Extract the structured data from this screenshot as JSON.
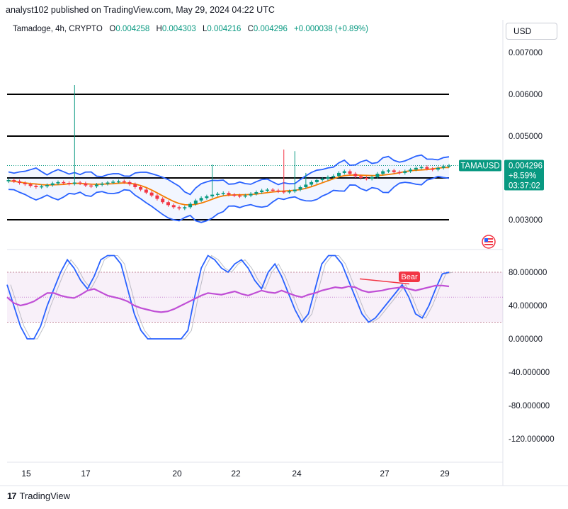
{
  "header": {
    "publisher": "analyst102 published on TradingView.com, May 29, 2024 04:22 UTC"
  },
  "symbol_bar": {
    "title": "Tamadoge, 4h, CRYPTO",
    "open_label": "O",
    "open_value": "0.004258",
    "high_label": "H",
    "high_value": "0.004303",
    "low_label": "L",
    "low_value": "0.004216",
    "close_label": "C",
    "close_value": "0.004296",
    "change": "+0.000038 (+0.89%)"
  },
  "currency_button": "USD",
  "price_tag": {
    "ticker": "TAMAUSD",
    "price": "0.004296",
    "pct": "+8.59%",
    "countdown": "03:37:02"
  },
  "indicator_tag": "Bear",
  "footer": {
    "brand": "TradingView"
  },
  "colors": {
    "up": "#089981",
    "down": "#f23645",
    "bb": "#2962ff",
    "ma": "#f57c00",
    "stoch_k": "#2962ff",
    "rsi": "#c04fd6",
    "bear": "#f23645",
    "ticker_bg": "#089981"
  },
  "chart_data": [
    {
      "type": "candlestick",
      "title": "Tamadoge, 4h, CRYPTO",
      "y_ticks": [
        "0.007000",
        "0.006000",
        "0.005000",
        "0.003000"
      ],
      "x_ticks": [
        "15",
        "17",
        "20",
        "22",
        "24",
        "27",
        "29"
      ],
      "horizontal_levels": [
        0.006,
        0.005,
        0.004,
        0.003
      ],
      "ylim": [
        0.0027,
        0.0074
      ],
      "overlays": [
        "Bollinger Bands",
        "Moving Average"
      ],
      "price_path": [
        0.00395,
        0.00392,
        0.00388,
        0.00385,
        0.00381,
        0.00378,
        0.0038,
        0.00383,
        0.00387,
        0.0039,
        0.00388,
        0.00386,
        0.00389,
        0.00387,
        0.00382,
        0.0038,
        0.00384,
        0.00386,
        0.00389,
        0.00391,
        0.00392,
        0.0039,
        0.00385,
        0.00378,
        0.00372,
        0.00365,
        0.00358,
        0.0035,
        0.00342,
        0.00335,
        0.0033,
        0.00327,
        0.0033,
        0.00338,
        0.00346,
        0.00352,
        0.00356,
        0.0036,
        0.00362,
        0.00364,
        0.0036,
        0.00358,
        0.00356,
        0.00358,
        0.00362,
        0.00366,
        0.0037,
        0.00372,
        0.0037,
        0.00368,
        0.00366,
        0.00368,
        0.00372,
        0.00378,
        0.00384,
        0.0039,
        0.00395,
        0.00398,
        0.00402,
        0.00405,
        0.00412,
        0.00416,
        0.0041,
        0.00404,
        0.004,
        0.00398,
        0.00402,
        0.0041,
        0.00416,
        0.00418,
        0.00414,
        0.00412,
        0.00416,
        0.0042,
        0.00424,
        0.00426,
        0.00422,
        0.0042,
        0.00424,
        0.00428,
        0.004296
      ],
      "wicks": [
        {
          "index": 12,
          "high": 0.00622
        },
        {
          "index": 37,
          "high": 0.00432
        },
        {
          "index": 50,
          "high": 0.00468
        },
        {
          "index": 52,
          "high": 0.00464
        },
        {
          "index": 54,
          "high": 0.00412
        }
      ],
      "last_price": 0.004296
    },
    {
      "type": "line",
      "title": "Stochastic RSI",
      "y_ticks": [
        "80.000000",
        "40.000000",
        "0.000000",
        "-40.000000",
        "-80.000000",
        "-120.000000"
      ],
      "ylim": [
        -148,
        110
      ],
      "band": [
        20,
        80
      ],
      "series": [
        {
          "values": [
            65,
            40,
            15,
            0,
            0,
            15,
            40,
            60,
            80,
            95,
            85,
            70,
            60,
            75,
            95,
            100,
            100,
            90,
            60,
            30,
            10,
            0,
            0,
            0,
            0,
            0,
            0,
            10,
            50,
            85,
            100,
            95,
            85,
            80,
            90,
            95,
            85,
            70,
            60,
            80,
            90,
            75,
            55,
            35,
            20,
            30,
            60,
            90,
            100,
            100,
            90,
            70,
            50,
            30,
            20,
            25,
            35,
            45,
            55,
            65,
            50,
            30,
            25,
            40,
            60,
            78,
            80
          ]
        },
        {
          "values": [
            50,
            43,
            40,
            42,
            45,
            50,
            55,
            55,
            52,
            50,
            49,
            53,
            58,
            60,
            56,
            52,
            50,
            48,
            45,
            40,
            37,
            35,
            33,
            32,
            33,
            36,
            40,
            44,
            48,
            52,
            55,
            54,
            53,
            55,
            57,
            54,
            52,
            55,
            58,
            56,
            55,
            58,
            55,
            52,
            50,
            53,
            55,
            58,
            60,
            62,
            61,
            63,
            62,
            58,
            56,
            57,
            58,
            60,
            61,
            62,
            60,
            58,
            60,
            62,
            64,
            64,
            63
          ]
        }
      ],
      "annotation": "Bear"
    }
  ]
}
